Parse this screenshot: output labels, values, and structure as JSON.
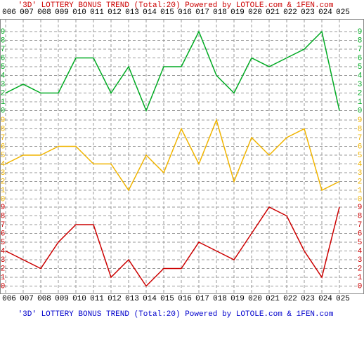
{
  "chart_data": {
    "type": "line",
    "title": "'3D' LOTTERY BONUS TREND (Total:20)  Powered by LOTOLE.com & 1FEN.com",
    "footer": "'3D' LOTTERY BONUS TREND (Total:20)  Powered by LOTOLE.com & 1FEN.com",
    "title_color": "#cc0000",
    "footer_color": "#0000cc",
    "categories": [
      "006",
      "007",
      "008",
      "009",
      "010",
      "011",
      "012",
      "013",
      "014",
      "015",
      "016",
      "017",
      "018",
      "019",
      "020",
      "021",
      "022",
      "023",
      "024",
      "025"
    ],
    "ylim": [
      0,
      9
    ],
    "yticks": [
      0,
      1,
      2,
      3,
      4,
      5,
      6,
      7,
      8,
      9
    ],
    "grid": true,
    "series": [
      {
        "color": "#00aa22",
        "values": [
          2,
          3,
          2,
          2,
          6,
          6,
          2,
          5,
          0,
          5,
          5,
          9,
          4,
          2,
          6,
          5,
          6,
          7,
          9,
          0
        ]
      },
      {
        "color": "#f0b400",
        "values": [
          4,
          5,
          5,
          6,
          6,
          4,
          4,
          1,
          5,
          3,
          8,
          4,
          9,
          2,
          7,
          5,
          7,
          8,
          1,
          2
        ]
      },
      {
        "color": "#cc0000",
        "values": [
          4,
          3,
          2,
          5,
          7,
          7,
          1,
          3,
          0,
          2,
          2,
          5,
          4,
          3,
          6,
          9,
          8,
          4,
          1,
          9
        ]
      }
    ]
  }
}
